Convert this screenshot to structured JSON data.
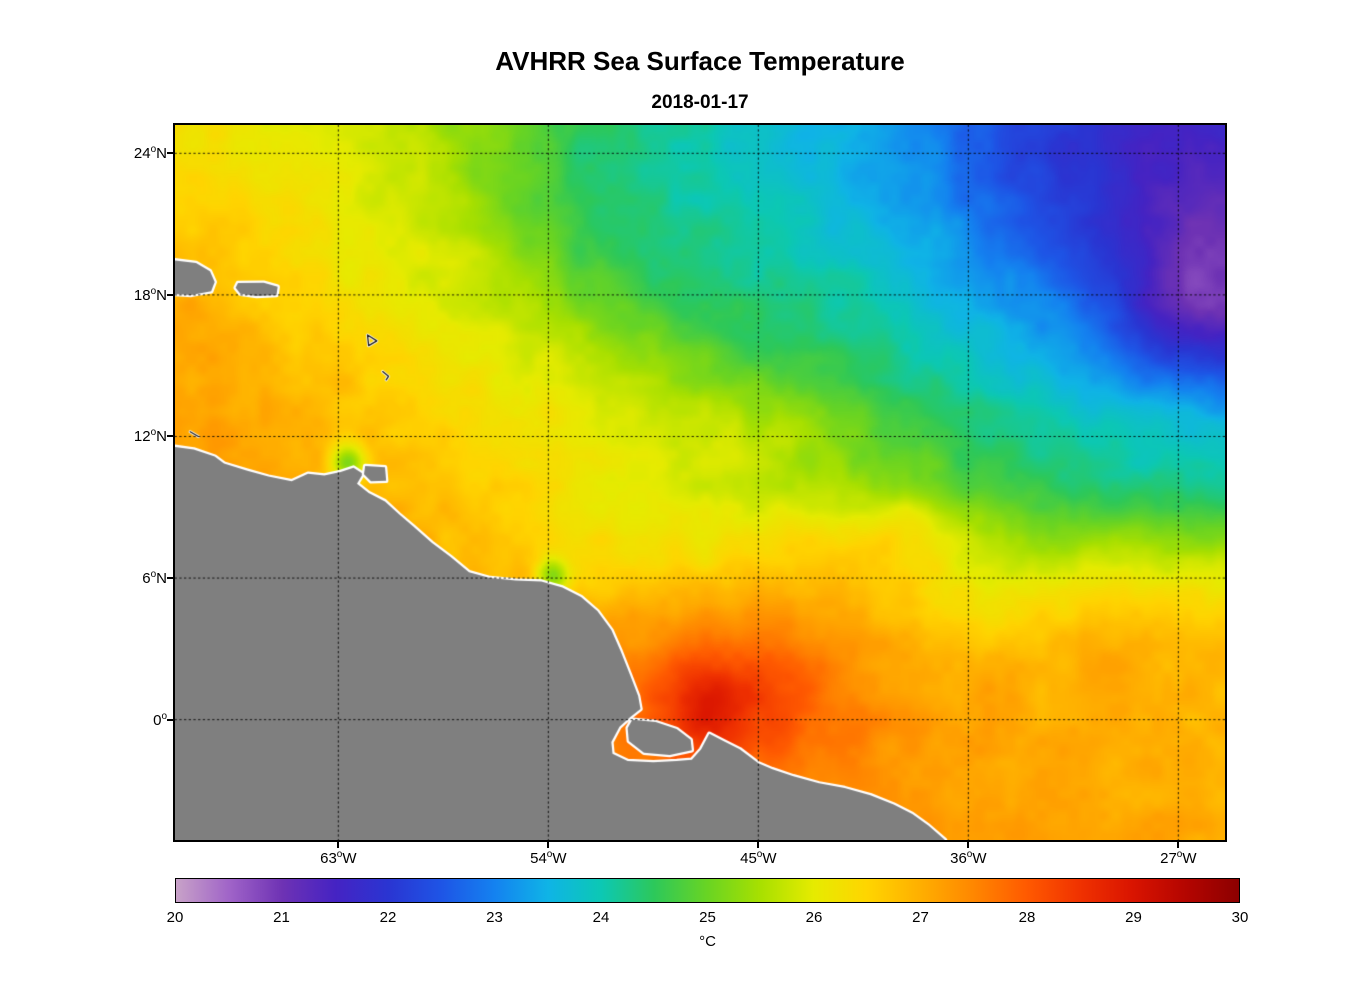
{
  "chart_data": {
    "type": "heatmap",
    "title": "AVHRR Sea Surface Temperature",
    "subtitle": "2018-01-17",
    "geo": {
      "lon_min": -70,
      "lon_max": -25,
      "lat_min": -5.1,
      "lat_max": 25.2
    },
    "x_axis": {
      "ticks": [
        {
          "v": -63,
          "n": "63",
          "s": "W"
        },
        {
          "v": -54,
          "n": "54",
          "s": "W"
        },
        {
          "v": -45,
          "n": "45",
          "s": "W"
        },
        {
          "v": -36,
          "n": "36",
          "s": "W"
        },
        {
          "v": -27,
          "n": "27",
          "s": "W"
        }
      ]
    },
    "y_axis": {
      "ticks": [
        {
          "v": 24,
          "n": "24",
          "s": "N"
        },
        {
          "v": 18,
          "n": "18",
          "s": "N"
        },
        {
          "v": 12,
          "n": "12",
          "s": "N"
        },
        {
          "v": 6,
          "n": "6",
          "s": "N"
        },
        {
          "v": 0,
          "n": "0",
          "s": ""
        }
      ]
    },
    "grid": {
      "lons": [
        -63,
        -54,
        -45,
        -36,
        -27
      ],
      "lats": [
        24,
        18,
        12,
        6,
        0
      ],
      "style": "dotted",
      "color": "#000000"
    },
    "colorbar": {
      "min": 20,
      "max": 30,
      "tick_values": [
        20,
        21,
        22,
        23,
        24,
        25,
        26,
        27,
        28,
        29,
        30
      ],
      "label": "°C",
      "stops": [
        {
          "v": 20.0,
          "c": "#C8A2C8"
        },
        {
          "v": 20.5,
          "c": "#A064C8"
        },
        {
          "v": 21.0,
          "c": "#6E32B4"
        },
        {
          "v": 21.5,
          "c": "#4523C3"
        },
        {
          "v": 22.0,
          "c": "#2A35D2"
        },
        {
          "v": 22.5,
          "c": "#1E55E6"
        },
        {
          "v": 23.0,
          "c": "#1482F0"
        },
        {
          "v": 23.5,
          "c": "#0FB4E6"
        },
        {
          "v": 24.0,
          "c": "#0CC8B4"
        },
        {
          "v": 24.5,
          "c": "#2DC85A"
        },
        {
          "v": 25.0,
          "c": "#69D423"
        },
        {
          "v": 25.5,
          "c": "#A8E000"
        },
        {
          "v": 26.0,
          "c": "#E6EB00"
        },
        {
          "v": 26.5,
          "c": "#FFD500"
        },
        {
          "v": 27.0,
          "c": "#FFAF00"
        },
        {
          "v": 27.5,
          "c": "#FF8700"
        },
        {
          "v": 28.0,
          "c": "#FF5A00"
        },
        {
          "v": 28.5,
          "c": "#F03200"
        },
        {
          "v": 29.0,
          "c": "#D91400"
        },
        {
          "v": 29.5,
          "c": "#B40500"
        },
        {
          "v": 30.0,
          "c": "#8C0000"
        }
      ]
    },
    "sst": {
      "unit": "°C",
      "lon0": -70,
      "dlon": 2.5,
      "lat0": 25,
      "dlat": -2.5,
      "values": [
        [
          26.3,
          26.2,
          26.0,
          25.9,
          25.7,
          25.3,
          24.9,
          24.5,
          24.2,
          24.0,
          23.8,
          23.6,
          23.3,
          23.0,
          22.5,
          22.1,
          21.8,
          21.5,
          21.6
        ],
        [
          26.5,
          26.4,
          26.2,
          26.0,
          25.8,
          25.4,
          24.9,
          24.4,
          24.2,
          24.1,
          23.9,
          23.7,
          23.4,
          23.1,
          22.6,
          22.2,
          21.8,
          21.4,
          21.2
        ],
        [
          26.8,
          26.6,
          26.4,
          26.1,
          25.9,
          25.7,
          25.2,
          24.7,
          24.4,
          24.3,
          24.1,
          23.9,
          23.7,
          23.4,
          23.0,
          22.6,
          22.1,
          21.4,
          21.1
        ],
        [
          27.0,
          26.8,
          26.6,
          26.3,
          26.1,
          25.9,
          25.6,
          25.2,
          24.8,
          24.5,
          24.4,
          24.2,
          24.0,
          23.7,
          23.4,
          23.0,
          22.5,
          21.6,
          21.2
        ],
        [
          27.1,
          27.0,
          26.8,
          26.6,
          26.4,
          26.2,
          26.0,
          25.7,
          25.4,
          25.1,
          24.8,
          24.6,
          24.4,
          24.1,
          23.8,
          23.5,
          23.1,
          22.6,
          22.3
        ],
        [
          27.2,
          27.1,
          27.0,
          26.8,
          26.6,
          26.4,
          26.3,
          26.1,
          25.9,
          25.8,
          25.6,
          25.3,
          24.9,
          24.6,
          24.3,
          24.1,
          23.9,
          23.7,
          23.6
        ],
        [
          27.3,
          27.2,
          27.0,
          26.9,
          26.8,
          26.6,
          26.4,
          26.2,
          26.0,
          25.9,
          25.8,
          25.6,
          25.3,
          25.0,
          24.7,
          24.5,
          24.3,
          24.2,
          24.1
        ],
        [
          27.4,
          27.4,
          27.3,
          27.2,
          27.0,
          26.8,
          26.6,
          26.4,
          26.3,
          26.2,
          26.3,
          26.5,
          26.2,
          25.9,
          25.6,
          25.4,
          25.5,
          25.4,
          25.3
        ],
        [
          27.5,
          27.5,
          27.4,
          27.3,
          27.2,
          27.0,
          26.9,
          26.8,
          26.9,
          27.0,
          27.1,
          27.0,
          26.8,
          26.5,
          26.3,
          26.4,
          26.5,
          26.4,
          26.3
        ],
        [
          27.6,
          27.6,
          27.5,
          27.4,
          27.3,
          27.3,
          27.2,
          27.3,
          27.6,
          28.0,
          27.9,
          27.6,
          27.2,
          27.0,
          26.9,
          26.9,
          27.0,
          26.9,
          26.8
        ],
        [
          27.7,
          27.7,
          27.6,
          27.5,
          27.4,
          27.4,
          27.4,
          27.5,
          27.8,
          28.4,
          28.2,
          27.8,
          27.4,
          27.2,
          27.1,
          27.0,
          27.0,
          27.0,
          26.9
        ],
        [
          27.7,
          27.7,
          27.7,
          27.6,
          27.5,
          27.5,
          27.5,
          27.5,
          27.6,
          27.8,
          27.7,
          27.5,
          27.3,
          27.2,
          27.1,
          27.1,
          27.0,
          27.0,
          27.0
        ],
        [
          27.7,
          27.7,
          27.7,
          27.6,
          27.6,
          27.6,
          27.5,
          27.5,
          27.5,
          27.6,
          27.5,
          27.4,
          27.3,
          27.3,
          27.3,
          27.2,
          27.1,
          27.1,
          27.0
        ]
      ],
      "anomalies": [
        {
          "lon": -62.6,
          "lat": 10.9,
          "sigma": 0.55,
          "delta": -1.7
        },
        {
          "lon": -53.8,
          "lat": 6.1,
          "sigma": 0.5,
          "delta": -1.4
        },
        {
          "lon": -47.0,
          "lat": 0.8,
          "sigma": 1.2,
          "delta": 0.6
        },
        {
          "lon": -26.8,
          "lat": 18.0,
          "sigma": 2.0,
          "delta": -0.3
        },
        {
          "lon": -38.5,
          "lat": 8.2,
          "sigma": 1.2,
          "delta": 0.5
        }
      ]
    },
    "land": {
      "fill": "#7F7F7F",
      "coast": "#FFFFFF",
      "polygons": [
        {
          "name": "south-america",
          "pts": [
            [
              -70.3,
              11.6
            ],
            [
              -69.2,
              11.45
            ],
            [
              -68.3,
              11.15
            ],
            [
              -67.9,
              10.85
            ],
            [
              -66.9,
              10.55
            ],
            [
              -66.0,
              10.3
            ],
            [
              -65.0,
              10.1
            ],
            [
              -64.3,
              10.42
            ],
            [
              -63.6,
              10.35
            ],
            [
              -62.9,
              10.5
            ],
            [
              -62.35,
              10.68
            ],
            [
              -61.95,
              10.42
            ],
            [
              -62.2,
              10.0
            ],
            [
              -61.7,
              9.6
            ],
            [
              -61.0,
              9.25
            ],
            [
              -60.4,
              8.7
            ],
            [
              -59.8,
              8.2
            ],
            [
              -59.0,
              7.5
            ],
            [
              -58.2,
              6.9
            ],
            [
              -57.4,
              6.25
            ],
            [
              -56.5,
              6.0
            ],
            [
              -55.4,
              5.9
            ],
            [
              -54.3,
              5.85
            ],
            [
              -53.4,
              5.6
            ],
            [
              -52.6,
              5.2
            ],
            [
              -51.9,
              4.6
            ],
            [
              -51.3,
              3.8
            ],
            [
              -50.9,
              2.9
            ],
            [
              -50.5,
              1.9
            ],
            [
              -50.15,
              1.0
            ],
            [
              -50.05,
              0.45
            ],
            [
              -50.5,
              0.1
            ],
            [
              -50.95,
              -0.3
            ],
            [
              -51.3,
              -0.95
            ],
            [
              -51.25,
              -1.45
            ],
            [
              -50.6,
              -1.75
            ],
            [
              -49.5,
              -1.8
            ],
            [
              -48.5,
              -1.75
            ],
            [
              -47.85,
              -1.7
            ],
            [
              -47.45,
              -1.25
            ],
            [
              -47.1,
              -0.6
            ],
            [
              -46.5,
              -0.9
            ],
            [
              -45.8,
              -1.25
            ],
            [
              -45.0,
              -1.85
            ],
            [
              -44.4,
              -2.1
            ],
            [
              -43.5,
              -2.4
            ],
            [
              -42.4,
              -2.7
            ],
            [
              -41.3,
              -2.9
            ],
            [
              -40.2,
              -3.2
            ],
            [
              -39.2,
              -3.6
            ],
            [
              -38.4,
              -4.0
            ],
            [
              -37.7,
              -4.5
            ],
            [
              -37.0,
              -5.1
            ],
            [
              -36.9,
              -5.4
            ],
            [
              -70.3,
              -5.4
            ]
          ]
        },
        {
          "name": "marajo-island",
          "pts": [
            [
              -50.4,
              0.0
            ],
            [
              -49.4,
              -0.1
            ],
            [
              -48.5,
              -0.4
            ],
            [
              -47.9,
              -0.85
            ],
            [
              -47.85,
              -1.3
            ],
            [
              -48.8,
              -1.5
            ],
            [
              -49.9,
              -1.4
            ],
            [
              -50.55,
              -0.9
            ],
            [
              -50.6,
              -0.35
            ]
          ]
        },
        {
          "name": "hispaniola-east",
          "pts": [
            [
              -70.3,
              19.5
            ],
            [
              -69.1,
              19.35
            ],
            [
              -68.5,
              19.0
            ],
            [
              -68.3,
              18.55
            ],
            [
              -68.45,
              18.15
            ],
            [
              -69.3,
              18.0
            ],
            [
              -70.3,
              18.05
            ]
          ]
        },
        {
          "name": "puerto-rico",
          "pts": [
            [
              -67.3,
              18.5
            ],
            [
              -66.2,
              18.52
            ],
            [
              -65.6,
              18.35
            ],
            [
              -65.65,
              18.0
            ],
            [
              -66.5,
              17.95
            ],
            [
              -67.2,
              18.05
            ],
            [
              -67.4,
              18.3
            ]
          ]
        },
        {
          "name": "trinidad",
          "pts": [
            [
              -61.85,
              10.75
            ],
            [
              -61.0,
              10.7
            ],
            [
              -60.95,
              10.12
            ],
            [
              -61.6,
              10.1
            ],
            [
              -61.9,
              10.4
            ]
          ]
        }
      ],
      "islets": [
        {
          "name": "guadeloupe",
          "pts": [
            [
              -61.75,
              16.3
            ],
            [
              -61.35,
              16.05
            ],
            [
              -61.7,
              15.85
            ],
            [
              -61.75,
              16.3
            ]
          ]
        },
        {
          "name": "martinique",
          "pts": [
            [
              -61.1,
              14.75
            ],
            [
              -60.85,
              14.55
            ],
            [
              -60.95,
              14.4
            ]
          ]
        },
        {
          "name": "curacao",
          "pts": [
            [
              -69.35,
              12.2
            ],
            [
              -69.0,
              12.0
            ]
          ]
        }
      ]
    }
  }
}
